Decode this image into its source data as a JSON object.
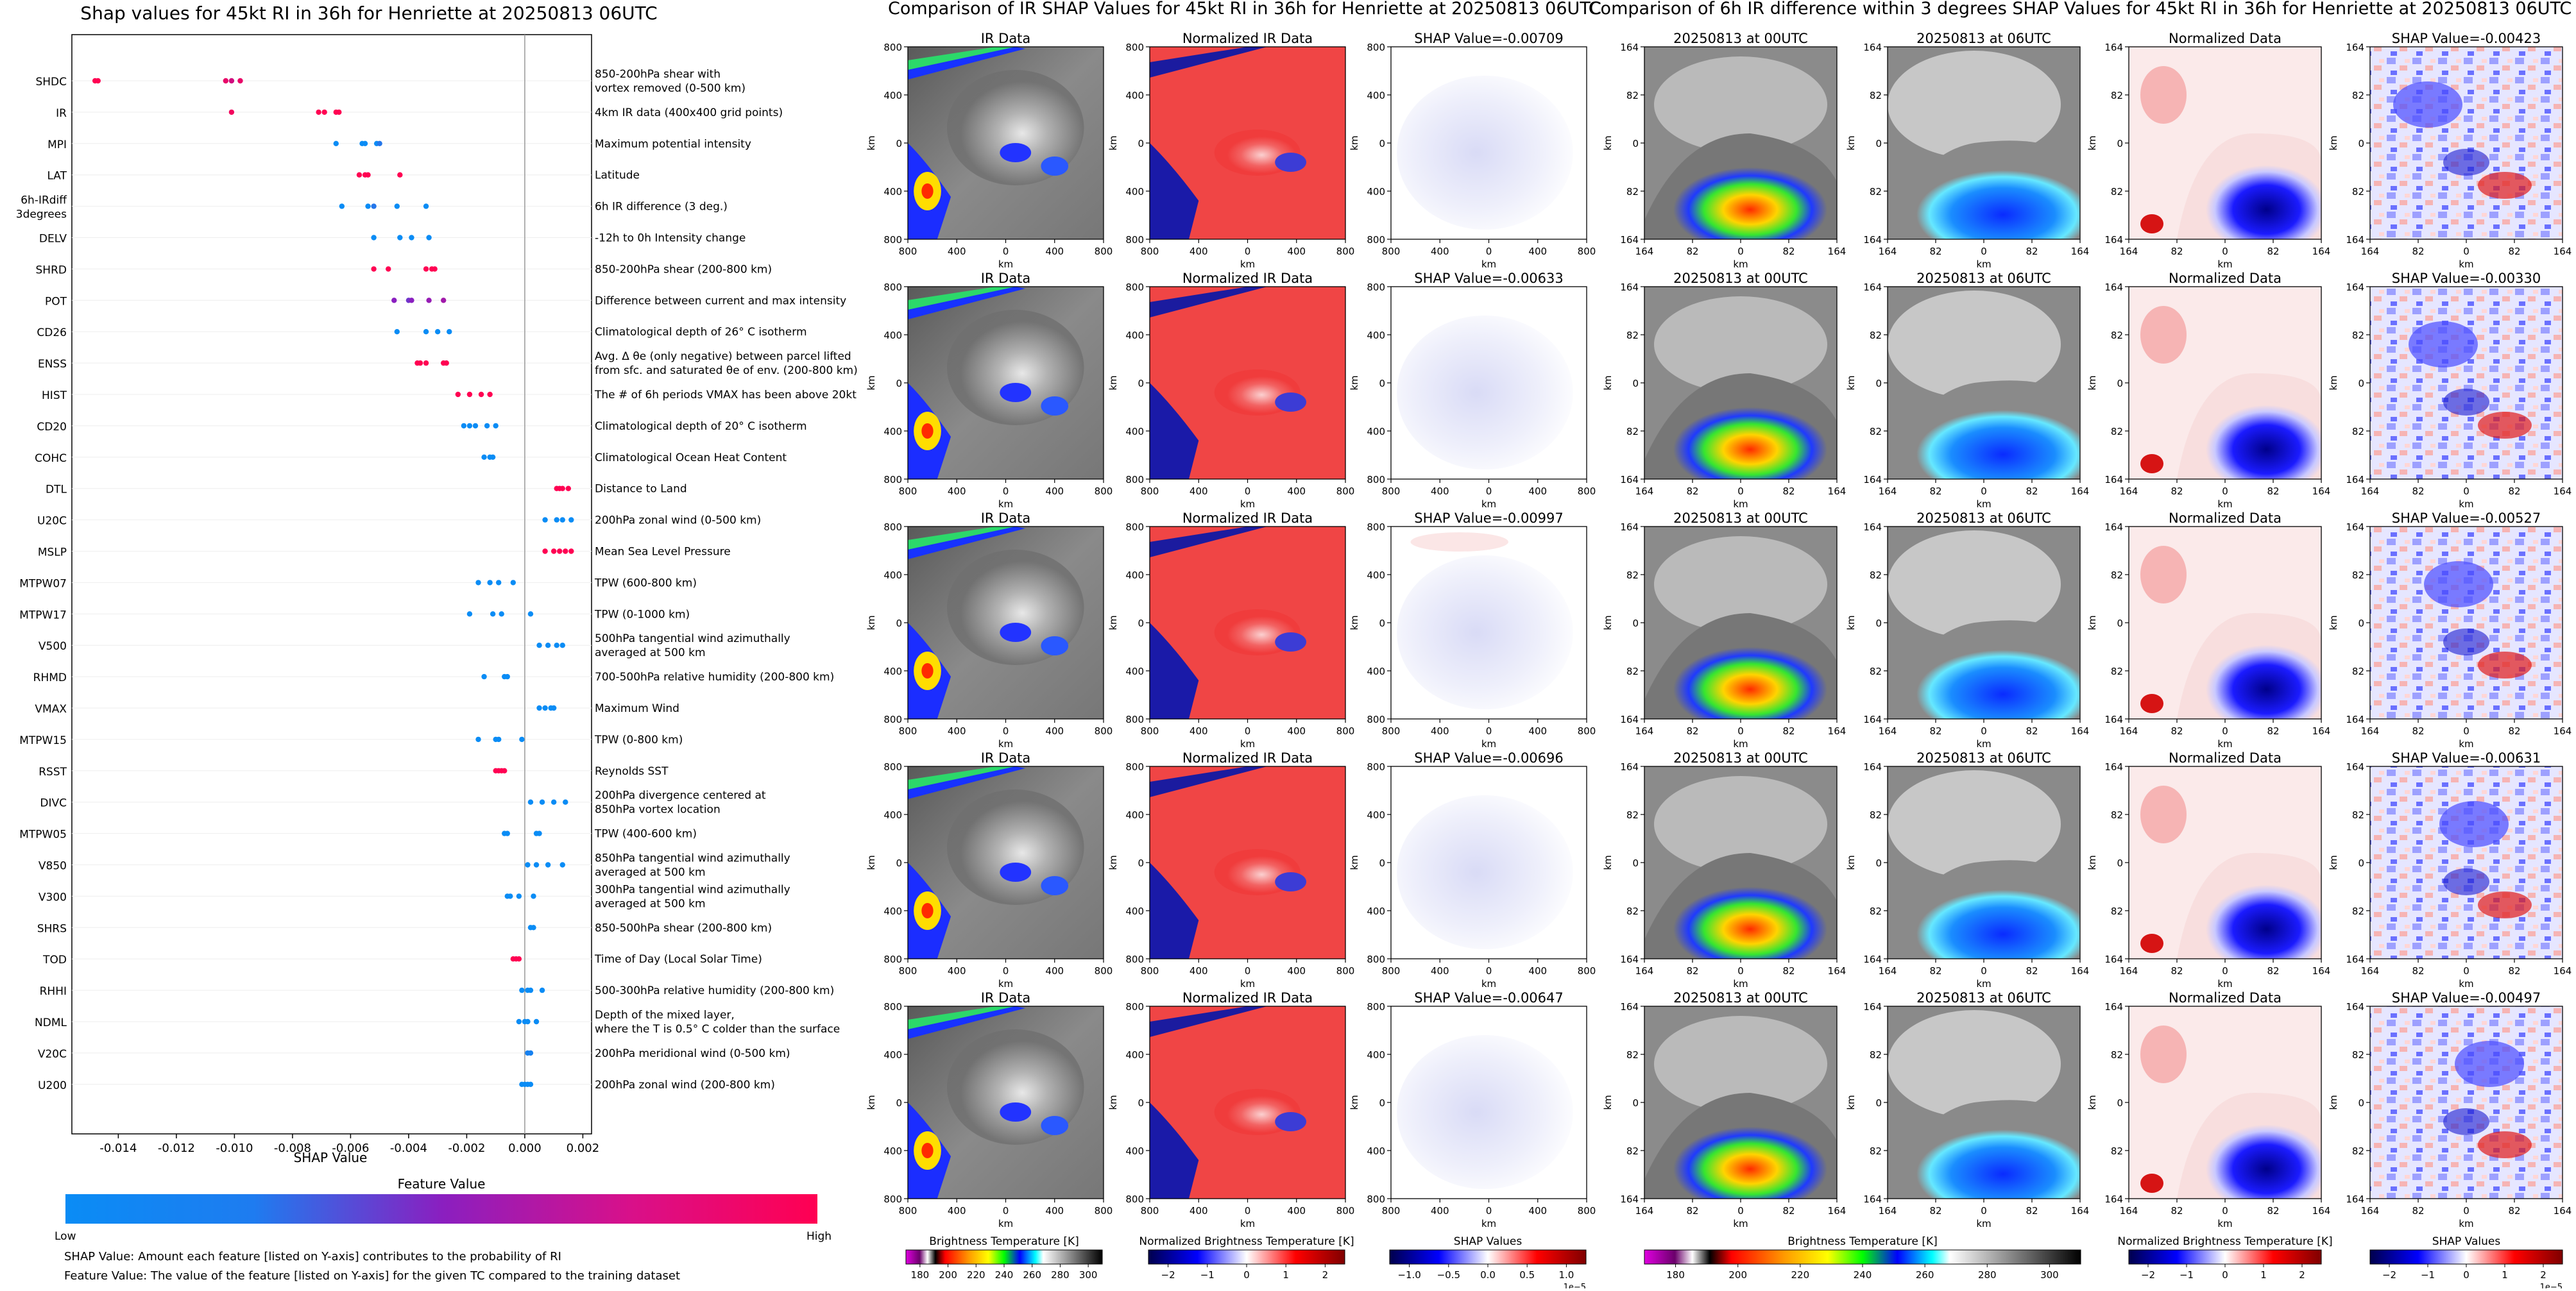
{
  "colors": {
    "low": "#1e88e5",
    "high": "#ff0052",
    "mid": "#8b1fb6",
    "shap_neg": "#0000c8",
    "shap_pos": "#c80000"
  },
  "shap_summary": {
    "title": "Shap values for 45kt RI in 36h for Henriette at 20250813 06UTC",
    "xlabel": "SHAP Value",
    "colorbar_title": "Feature Value",
    "colorbar_low": "Low",
    "colorbar_high": "High",
    "footnote_1": "SHAP Value: Amount each feature [listed on Y-axis] contributes to the probability of RI",
    "footnote_2": "Feature Value: The value of the feature [listed on Y-axis] for the given TC compared to the training dataset"
  },
  "chart_data": [
    {
      "type": "scatter",
      "xlim": [
        -0.0156,
        0.0023
      ],
      "xticks": [
        "-0.014",
        "-0.012",
        "-0.010",
        "-0.008",
        "-0.006",
        "-0.004",
        "-0.002",
        "0.000",
        "0.002"
      ],
      "xtick_values": [
        -0.014,
        -0.012,
        -0.01,
        -0.008,
        -0.006,
        -0.004,
        -0.002,
        0.0,
        0.002
      ],
      "rows": [
        {
          "name": "SHDC",
          "desc": "850-200hPa shear with\nvortex removed (0-500 km)",
          "points": [
            [
              -0.0148,
              1
            ],
            [
              -0.0147,
              1
            ],
            [
              -0.0103,
              0.9
            ],
            [
              -0.0101,
              0.8
            ],
            [
              -0.0098,
              0.9
            ]
          ]
        },
        {
          "name": "IR",
          "desc": "4km IR data (400x400 grid points)",
          "points": [
            [
              -0.0101,
              0.95
            ],
            [
              -0.0071,
              1
            ],
            [
              -0.0069,
              1
            ],
            [
              -0.0065,
              1
            ],
            [
              -0.0064,
              1
            ]
          ]
        },
        {
          "name": "MPI",
          "desc": "Maximum potential intensity",
          "points": [
            [
              -0.0065,
              0
            ],
            [
              -0.0056,
              0
            ],
            [
              -0.0055,
              0
            ],
            [
              -0.0051,
              0
            ],
            [
              -0.005,
              0.1
            ]
          ]
        },
        {
          "name": "LAT",
          "desc": "Latitude",
          "points": [
            [
              -0.0057,
              1
            ],
            [
              -0.0055,
              1
            ],
            [
              -0.0054,
              1
            ],
            [
              -0.0043,
              1
            ]
          ]
        },
        {
          "name": "6h-IRdiff\n3degrees",
          "desc": "6h IR difference (3 deg.)",
          "points": [
            [
              -0.0063,
              0
            ],
            [
              -0.0054,
              0
            ],
            [
              -0.0052,
              0.1
            ],
            [
              -0.0044,
              0
            ],
            [
              -0.0034,
              0
            ]
          ]
        },
        {
          "name": "DELV",
          "desc": "-12h to 0h Intensity change",
          "points": [
            [
              -0.0052,
              0
            ],
            [
              -0.0043,
              0
            ],
            [
              -0.0039,
              0
            ],
            [
              -0.0033,
              0
            ]
          ]
        },
        {
          "name": "SHRD",
          "desc": "850-200hPa shear (200-800 km)",
          "points": [
            [
              -0.0052,
              1
            ],
            [
              -0.0047,
              1
            ],
            [
              -0.0034,
              1
            ],
            [
              -0.0032,
              1
            ],
            [
              -0.0031,
              1
            ]
          ]
        },
        {
          "name": "POT",
          "desc": "Difference between current and max intensity",
          "points": [
            [
              -0.0045,
              0.5
            ],
            [
              -0.004,
              0.4
            ],
            [
              -0.0039,
              0.5
            ],
            [
              -0.0033,
              0.55
            ],
            [
              -0.0028,
              0.6
            ]
          ]
        },
        {
          "name": "CD26",
          "desc": "Climatological depth of 26° C isotherm",
          "points": [
            [
              -0.0044,
              0
            ],
            [
              -0.0034,
              0
            ],
            [
              -0.003,
              0
            ],
            [
              -0.0026,
              0
            ]
          ]
        },
        {
          "name": "ENSS",
          "desc": "Avg. Δ θe (only negative) between parcel lifted\nfrom sfc. and saturated θe of env. (200-800 km)",
          "points": [
            [
              -0.0037,
              1
            ],
            [
              -0.0036,
              1
            ],
            [
              -0.0034,
              1
            ],
            [
              -0.0028,
              1
            ],
            [
              -0.0027,
              1
            ]
          ]
        },
        {
          "name": "HIST",
          "desc": "The # of 6h periods VMAX has been above 20kt",
          "points": [
            [
              -0.0023,
              1
            ],
            [
              -0.0019,
              1
            ],
            [
              -0.0015,
              1
            ],
            [
              -0.0012,
              1
            ]
          ]
        },
        {
          "name": "CD20",
          "desc": "Climatological depth of 20° C isotherm",
          "points": [
            [
              -0.0021,
              0
            ],
            [
              -0.0019,
              0
            ],
            [
              -0.0017,
              0
            ],
            [
              -0.0013,
              0
            ],
            [
              -0.001,
              0
            ]
          ]
        },
        {
          "name": "COHC",
          "desc": "Climatological Ocean Heat Content",
          "points": [
            [
              -0.0014,
              0
            ],
            [
              -0.0012,
              0
            ],
            [
              -0.0011,
              0
            ]
          ]
        },
        {
          "name": "DTL",
          "desc": "Distance to Land",
          "points": [
            [
              0.0011,
              1
            ],
            [
              0.0012,
              1
            ],
            [
              0.0013,
              1
            ],
            [
              0.0015,
              1
            ]
          ]
        },
        {
          "name": "U20C",
          "desc": "200hPa zonal wind (0-500 km)",
          "points": [
            [
              0.0007,
              0
            ],
            [
              0.0011,
              0
            ],
            [
              0.0013,
              0
            ],
            [
              0.0016,
              0
            ]
          ]
        },
        {
          "name": "MSLP",
          "desc": "Mean Sea Level Pressure",
          "points": [
            [
              0.0007,
              1
            ],
            [
              0.001,
              1
            ],
            [
              0.0012,
              1
            ],
            [
              0.0014,
              1
            ],
            [
              0.0016,
              1
            ]
          ]
        },
        {
          "name": "MTPW07",
          "desc": "TPW (600-800 km)",
          "points": [
            [
              -0.0016,
              0
            ],
            [
              -0.0012,
              0
            ],
            [
              -0.0009,
              0
            ],
            [
              -0.0004,
              0
            ]
          ]
        },
        {
          "name": "MTPW17",
          "desc": "TPW (0-1000 km)",
          "points": [
            [
              -0.0019,
              0
            ],
            [
              -0.0011,
              0
            ],
            [
              -0.0008,
              0
            ],
            [
              0.0002,
              0
            ]
          ]
        },
        {
          "name": "V500",
          "desc": "500hPa tangential wind azimuthally\naveraged at 500 km",
          "points": [
            [
              0.0005,
              0
            ],
            [
              0.0008,
              0
            ],
            [
              0.0011,
              0
            ],
            [
              0.0013,
              0
            ]
          ]
        },
        {
          "name": "RHMD",
          "desc": "700-500hPa relative humidity (200-800 km)",
          "points": [
            [
              -0.0014,
              0
            ],
            [
              -0.0007,
              0
            ],
            [
              -0.0006,
              0
            ]
          ]
        },
        {
          "name": "VMAX",
          "desc": "Maximum Wind",
          "points": [
            [
              0.0005,
              0
            ],
            [
              0.0007,
              0
            ],
            [
              0.0009,
              0
            ],
            [
              0.001,
              0
            ]
          ]
        },
        {
          "name": "MTPW15",
          "desc": "TPW (0-800 km)",
          "points": [
            [
              -0.0016,
              0
            ],
            [
              -0.001,
              0
            ],
            [
              -0.0009,
              0
            ],
            [
              -0.0001,
              0
            ]
          ]
        },
        {
          "name": "RSST",
          "desc": "Reynolds SST",
          "points": [
            [
              -0.001,
              1
            ],
            [
              -0.0009,
              1
            ],
            [
              -0.0008,
              1
            ],
            [
              -0.0007,
              1
            ]
          ]
        },
        {
          "name": "DIVC",
          "desc": "200hPa divergence centered at\n850hPa vortex location",
          "points": [
            [
              0.0002,
              0
            ],
            [
              0.0006,
              0
            ],
            [
              0.001,
              0
            ],
            [
              0.0014,
              0
            ]
          ]
        },
        {
          "name": "MTPW05",
          "desc": "TPW (400-600 km)",
          "points": [
            [
              -0.0007,
              0
            ],
            [
              -0.0006,
              0
            ],
            [
              0.0004,
              0
            ],
            [
              0.0005,
              0
            ]
          ]
        },
        {
          "name": "V850",
          "desc": "850hPa tangential wind azimuthally\naveraged at 500 km",
          "points": [
            [
              0.0001,
              0
            ],
            [
              0.0004,
              0
            ],
            [
              0.0008,
              0
            ],
            [
              0.0013,
              0
            ]
          ]
        },
        {
          "name": "V300",
          "desc": "300hPa tangential wind azimuthally\naveraged at 500 km",
          "points": [
            [
              -0.0006,
              0
            ],
            [
              -0.0005,
              0
            ],
            [
              -0.0002,
              0
            ],
            [
              0.0003,
              0
            ]
          ]
        },
        {
          "name": "SHRS",
          "desc": "850-500hPa shear (200-800 km)",
          "points": [
            [
              0.0002,
              0
            ],
            [
              0.0003,
              0
            ]
          ]
        },
        {
          "name": "TOD",
          "desc": "Time of Day (Local Solar Time)",
          "points": [
            [
              -0.0004,
              1
            ],
            [
              -0.0003,
              1
            ],
            [
              -0.0002,
              1
            ]
          ]
        },
        {
          "name": "RHHI",
          "desc": "500-300hPa relative humidity (200-800 km)",
          "points": [
            [
              -0.0001,
              0
            ],
            [
              0.0001,
              0
            ],
            [
              0.0002,
              0
            ],
            [
              0.0006,
              0
            ]
          ]
        },
        {
          "name": "NDML",
          "desc": "Depth of the mixed layer,\nwhere the T is 0.5° C colder than the surface",
          "points": [
            [
              -0.0002,
              0
            ],
            [
              0.0,
              0
            ],
            [
              0.0001,
              0
            ],
            [
              0.0004,
              0
            ]
          ]
        },
        {
          "name": "V20C",
          "desc": "200hPa meridional wind (0-500 km)",
          "points": [
            [
              0.0001,
              0.05
            ],
            [
              0.0002,
              0.05
            ]
          ]
        },
        {
          "name": "U200",
          "desc": "200hPa zonal wind (200-800 km)",
          "points": [
            [
              -0.0001,
              0
            ],
            [
              0.0,
              0
            ],
            [
              0.0001,
              0
            ],
            [
              0.0002,
              0
            ]
          ]
        }
      ]
    },
    {
      "type": "heatmap",
      "title": "Comparison of IR SHAP Values for 45kt RI in 36h for Henriette at 20250813 06UTC",
      "panel_titles": {
        "ir": "IR Data",
        "norm": "Normalized IR Data"
      },
      "shap_values": [
        "SHAP Value=-0.00709",
        "SHAP Value=-0.00633",
        "SHAP Value=-0.00997",
        "SHAP Value=-0.00696",
        "SHAP Value=-0.00647"
      ],
      "axis_unit": "km",
      "yticks": [
        "800",
        "400",
        "0",
        "400",
        "800"
      ],
      "xticks": [
        "800",
        "400",
        "0",
        "400",
        "800"
      ],
      "colorbars": [
        {
          "label": "Brightness Temperature [K]",
          "ticks": [
            "180",
            "200",
            "220",
            "240",
            "260",
            "280",
            "300"
          ]
        },
        {
          "label": "Normalized Brightness Temperature [K]",
          "ticks": [
            "−2",
            "−1",
            "0",
            "1",
            "2"
          ]
        },
        {
          "label": "SHAP Values",
          "ticks": [
            "−1.0",
            "−0.5",
            "0.0",
            "0.5",
            "1.0"
          ],
          "scale": "1e−5"
        }
      ]
    },
    {
      "type": "heatmap",
      "title": "Comparison of 6h IR difference within 3 degrees SHAP Values for 45kt RI in 36h for Henriette at 20250813 06UTC",
      "panel_titles": {
        "t0": "20250813 at 00UTC",
        "t1": "20250813 at 06UTC",
        "norm": "Normalized Data"
      },
      "shap_values": [
        "SHAP Value=-0.00423",
        "SHAP Value=-0.00330",
        "SHAP Value=-0.00527",
        "SHAP Value=-0.00631",
        "SHAP Value=-0.00497"
      ],
      "axis_unit": "km",
      "yticks": [
        "164",
        "82",
        "0",
        "82",
        "164"
      ],
      "xticks": [
        "164",
        "82",
        "0",
        "82",
        "164"
      ],
      "colorbars": [
        {
          "label": "Brightness Temperature [K]",
          "ticks": [
            "180",
            "200",
            "220",
            "240",
            "260",
            "280",
            "300"
          ]
        },
        {
          "label": "Normalized Brightness Temperature [K]",
          "ticks": [
            "−2",
            "−1",
            "0",
            "1",
            "2"
          ]
        },
        {
          "label": "SHAP Values",
          "ticks": [
            "−2",
            "−1",
            "0",
            "1",
            "2"
          ],
          "scale": "1e−5"
        }
      ]
    }
  ]
}
